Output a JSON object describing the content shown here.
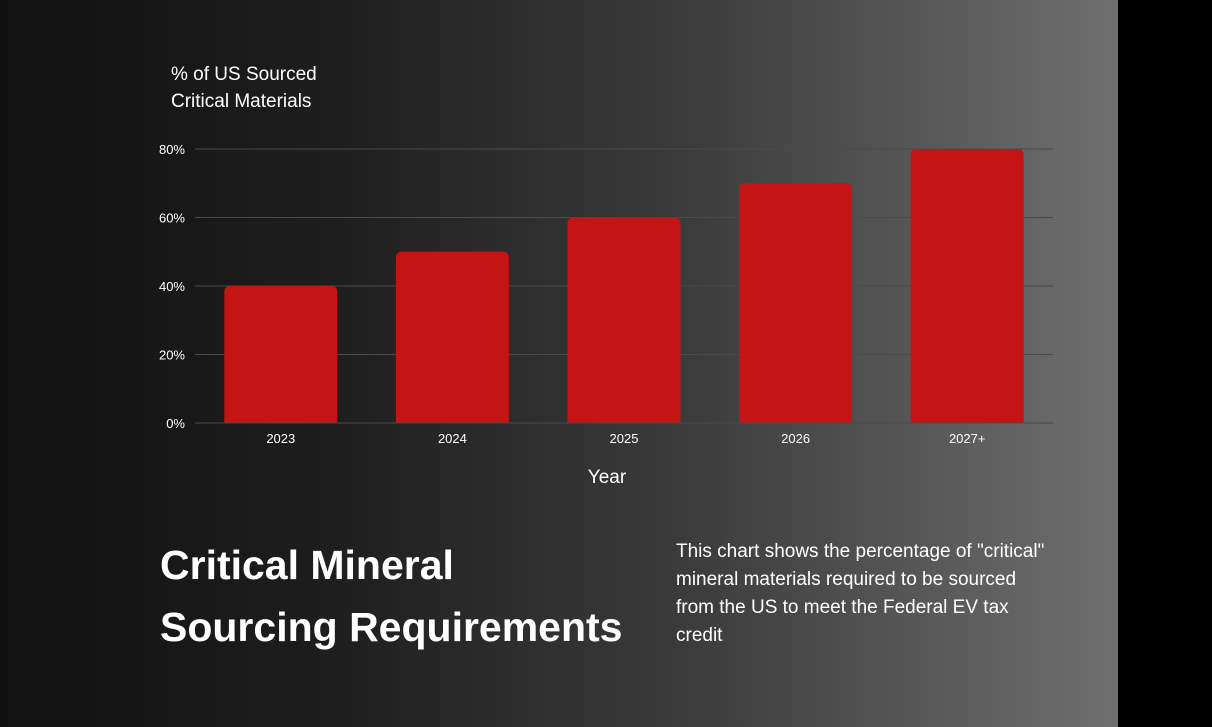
{
  "chart_data": {
    "type": "bar",
    "categories": [
      "2023",
      "2024",
      "2025",
      "2026",
      "2027+"
    ],
    "values": [
      40,
      50,
      60,
      70,
      80
    ],
    "ylabel_lines": [
      "% of US Sourced",
      "Critical Materials"
    ],
    "xlabel": "Year",
    "ylim": [
      0,
      80
    ],
    "yticks": [
      0,
      20,
      40,
      60,
      80
    ],
    "ytick_labels": [
      "0%",
      "20%",
      "40%",
      "60%",
      "80%"
    ],
    "grid": true,
    "bar_color": "#c41414",
    "grid_color": "#4a4a4a"
  },
  "title_lines": [
    "Critical Mineral",
    "Sourcing Requirements"
  ],
  "description": "This chart shows the percentage of \"critical\" mineral materials required to be sourced from the US to meet the Federal EV tax credit"
}
